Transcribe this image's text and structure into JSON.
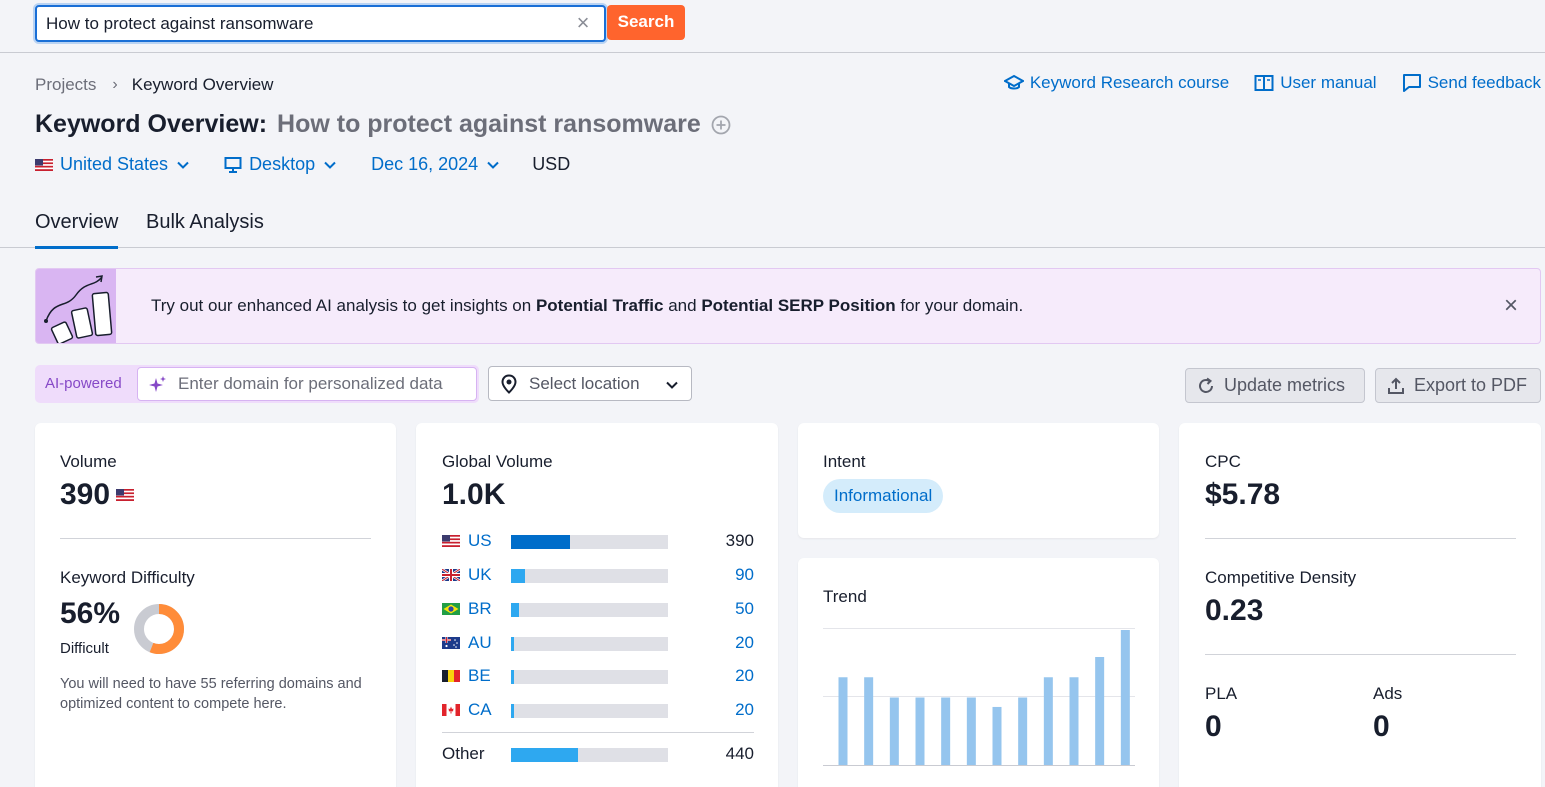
{
  "search": {
    "value": "How to protect against ransomware",
    "button_label": "Search"
  },
  "breadcrumb": {
    "items": [
      "Projects",
      "Keyword Overview"
    ]
  },
  "header_links": {
    "course": "Keyword Research course",
    "manual": "User manual",
    "feedback": "Send feedback"
  },
  "title": {
    "prefix": "Keyword Overview:",
    "keyword": "How to protect against ransomware"
  },
  "filters": {
    "country": "United States",
    "device": "Desktop",
    "date": "Dec 16, 2024",
    "currency": "USD"
  },
  "tabs": [
    "Overview",
    "Bulk Analysis"
  ],
  "banner": {
    "text_1": "Try out our enhanced AI analysis to get insights on",
    "bold_1": "Potential Traffic",
    "text_2": "and",
    "bold_2": "Potential SERP Position",
    "text_3": "for your domain."
  },
  "ai": {
    "label": "AI-powered",
    "placeholder": "Enter domain for personalized data",
    "location_placeholder": "Select location"
  },
  "actions": {
    "update": "Update metrics",
    "export": "Export to PDF"
  },
  "volume": {
    "label": "Volume",
    "value": "390"
  },
  "keyword_difficulty": {
    "label": "Keyword Difficulty",
    "value": "56%",
    "percent": 56,
    "level": "Difficult",
    "note": "You will need to have 55 referring domains and optimized content to compete here."
  },
  "global_volume": {
    "label": "Global Volume",
    "value": "1.0K",
    "rows": [
      {
        "code": "US",
        "value": "390",
        "share": 0.376,
        "color": "#006dca"
      },
      {
        "code": "UK",
        "value": "90",
        "share": 0.087,
        "color": "#2ea8f0"
      },
      {
        "code": "BR",
        "value": "50",
        "share": 0.048,
        "color": "#2ea8f0"
      },
      {
        "code": "AU",
        "value": "20",
        "share": 0.019,
        "color": "#2ea8f0"
      },
      {
        "code": "BE",
        "value": "20",
        "share": 0.019,
        "color": "#2ea8f0"
      },
      {
        "code": "CA",
        "value": "20",
        "share": 0.019,
        "color": "#2ea8f0"
      }
    ],
    "other": {
      "label": "Other",
      "value": "440",
      "share": 0.425,
      "color": "#2ea8f0"
    }
  },
  "intent": {
    "label": "Intent",
    "value": "Informational"
  },
  "trend": {
    "label": "Trend",
    "values": [
      0.65,
      0.65,
      0.5,
      0.5,
      0.5,
      0.5,
      0.43,
      0.5,
      0.65,
      0.65,
      0.8,
      1.0
    ],
    "bar_color": "#95c5ee"
  },
  "cpc": {
    "label": "CPC",
    "value": "$5.78"
  },
  "competitive_density": {
    "label": "Competitive Density",
    "value": "0.23"
  },
  "pla": {
    "label": "PLA",
    "value": "0"
  },
  "ads": {
    "label": "Ads",
    "value": "0"
  },
  "colors": {
    "accent": "#006dca",
    "search_button": "#ff642d",
    "kd_orange": "#ff8c39",
    "kd_gray": "#c9cbd2"
  }
}
